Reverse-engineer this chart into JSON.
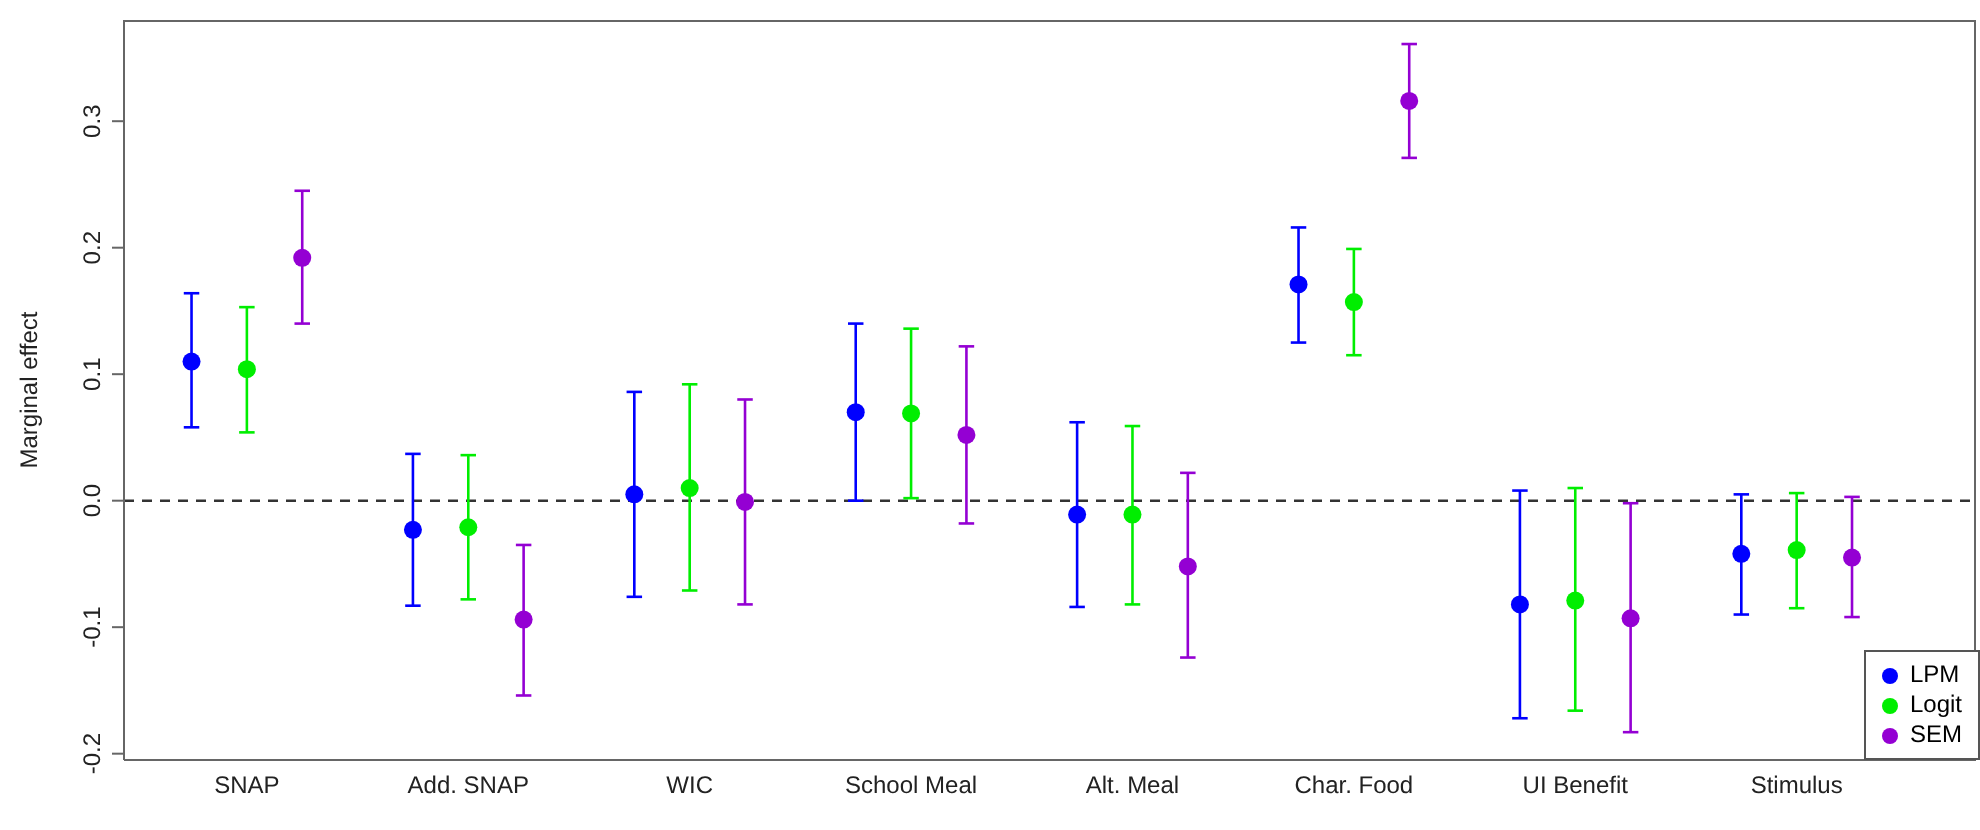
{
  "chart_data": {
    "type": "scatter",
    "ylabel": "Marginal effect",
    "categories": [
      "SNAP",
      "Add. SNAP",
      "WIC",
      "School Meal",
      "Alt. Meal",
      "Char. Food",
      "UI Benefit",
      "Stimulus"
    ],
    "ylim": [
      -0.205,
      0.38
    ],
    "yticks": [
      -0.2,
      -0.1,
      {
        "value": 0,
        "label": "0.0"
      },
      0.1,
      0.2,
      0.3
    ],
    "series": [
      {
        "name": "LPM",
        "color": "#0000ff",
        "values": [
          0.11,
          -0.023,
          0.005,
          0.07,
          -0.011,
          0.171,
          -0.082,
          -0.042
        ],
        "errors": [
          [
            0.058,
            0.164
          ],
          [
            -0.083,
            0.037
          ],
          [
            -0.076,
            0.086
          ],
          [
            0.0,
            0.14
          ],
          [
            -0.084,
            0.062
          ],
          [
            0.125,
            0.216
          ],
          [
            -0.172,
            0.008
          ],
          [
            -0.09,
            0.005
          ]
        ]
      },
      {
        "name": "Logit",
        "color": "#00ee00",
        "values": [
          0.104,
          -0.021,
          0.01,
          0.069,
          -0.011,
          0.157,
          -0.079,
          -0.039
        ],
        "errors": [
          [
            0.054,
            0.153
          ],
          [
            -0.078,
            0.036
          ],
          [
            -0.071,
            0.092
          ],
          [
            0.002,
            0.136
          ],
          [
            -0.082,
            0.059
          ],
          [
            0.115,
            0.199
          ],
          [
            -0.166,
            0.01
          ],
          [
            -0.085,
            0.006
          ]
        ]
      },
      {
        "name": "SEM",
        "color": "#9400d3",
        "values": [
          0.192,
          -0.094,
          -0.001,
          0.052,
          -0.052,
          0.316,
          -0.093,
          -0.045
        ],
        "errors": [
          [
            0.14,
            0.245
          ],
          [
            -0.154,
            -0.035
          ],
          [
            -0.082,
            0.08
          ],
          [
            -0.018,
            0.122
          ],
          [
            -0.124,
            0.022
          ],
          [
            0.271,
            0.361
          ],
          [
            -0.183,
            -0.002
          ],
          [
            -0.092,
            0.003
          ]
        ]
      }
    ],
    "ref_lines": [
      {
        "axis": "y",
        "value": 0,
        "line_style": "dashed",
        "color": "#333333"
      }
    ],
    "marker": "circle",
    "legend": "bottom right",
    "grid": false
  }
}
